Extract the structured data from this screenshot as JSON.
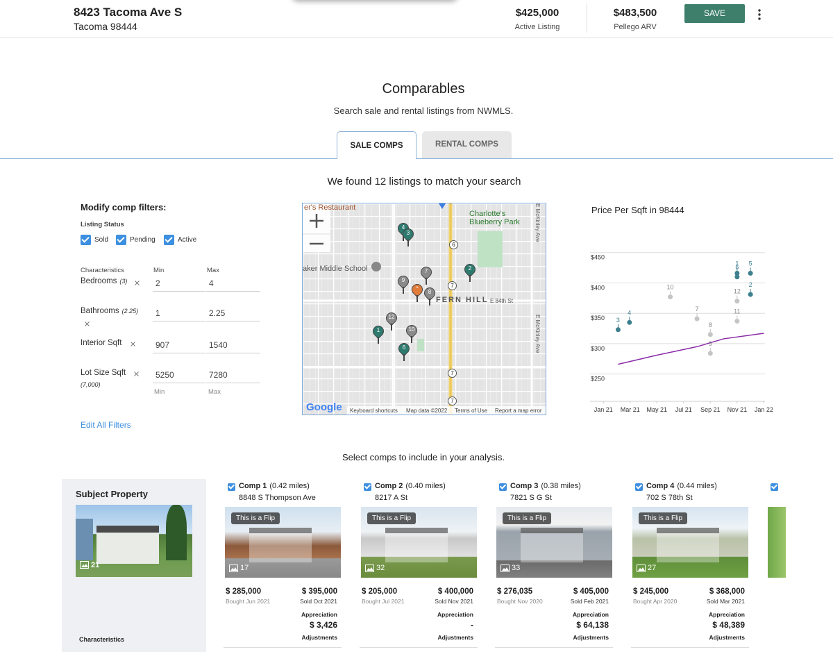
{
  "header": {
    "address": "8423 Tacoma Ave S",
    "city": "Tacoma 98444",
    "list_price": "$425,000",
    "list_label": "Active Listing",
    "arv": "$483,500",
    "arv_label": "Pellego ARV",
    "save": "SAVE"
  },
  "comparables": {
    "title": "Comparables",
    "subtitle": "Search sale and rental listings from NWMLS.",
    "tabs": [
      "SALE COMPS",
      "RENTAL COMPS"
    ],
    "found": "We found 12 listings to match your search"
  },
  "filters": {
    "title": "Modify comp filters:",
    "status_label": "Listing Status",
    "statuses": [
      "Sold",
      "Pending",
      "Active"
    ],
    "characteristics_label": "Characteristics",
    "min_label": "Min",
    "max_label": "Max",
    "rows": [
      {
        "label": "Bedrooms",
        "note": "(3)",
        "min": "2",
        "max": "4"
      },
      {
        "label": "Bathrooms",
        "note": "(2.25)",
        "min": "1",
        "max": "2.25"
      },
      {
        "label": "Interior Sqft",
        "min": "907",
        "max": "1540"
      },
      {
        "label": "Lot Size Sqft",
        "note": "(7,000)",
        "min": "5250",
        "max": "7280"
      }
    ],
    "footer_min": "Min",
    "footer_max": "Max",
    "edit": "Edit All Filters"
  },
  "map": {
    "labels": [
      "er's Restaurant",
      "Charlotte's Blueberry Park",
      "aker Middle School",
      "FERN HILL",
      "E 84th St",
      "E McKinley Ave",
      "E McKinley Ave"
    ],
    "shields": [
      "6",
      "7",
      "7",
      "7"
    ],
    "pins": [
      {
        "label": "4"
      },
      {
        "label": "3"
      },
      {
        "label": "2"
      },
      {
        "label": "7"
      },
      {
        "label": "9"
      },
      {
        "label": "*"
      },
      {
        "label": "8"
      },
      {
        "label": "12"
      },
      {
        "label": "10"
      },
      {
        "label": "1"
      },
      {
        "label": "6"
      }
    ],
    "logo": "Google",
    "footer": [
      "Keyboard shortcuts",
      "Map data ©2022",
      "Terms of Use",
      "Report a map error"
    ]
  },
  "chart_data": {
    "type": "scatter",
    "title": "Price Per Sqft in 98444",
    "xlim": [
      -1,
      12.5
    ],
    "xticks": [
      {
        "value": 0,
        "label": "Jan 21"
      },
      {
        "value": 2,
        "label": "Mar 21"
      },
      {
        "value": 4,
        "label": "May 21"
      },
      {
        "value": 6,
        "label": "Jul 21"
      },
      {
        "value": 8,
        "label": "Sep 21"
      },
      {
        "value": 10,
        "label": "Nov 21"
      },
      {
        "value": 12,
        "label": "Jan 22"
      }
    ],
    "ylim": [
      205,
      460
    ],
    "yticks": [
      {
        "value": 250,
        "label": "$250"
      },
      {
        "value": 300,
        "label": "$300"
      },
      {
        "value": 350,
        "label": "$350"
      },
      {
        "value": 400,
        "label": "$400"
      },
      {
        "value": 450,
        "label": "$450"
      }
    ],
    "grid": true,
    "points": [
      {
        "label": "3",
        "x": 1.1,
        "y": 323,
        "color": "#3d7f8f"
      },
      {
        "label": "4",
        "x": 1.95,
        "y": 335,
        "color": "#3d7f8f"
      },
      {
        "label": "10",
        "x": 5,
        "y": 377,
        "color": "#c4c4c4"
      },
      {
        "label": "7",
        "x": 7,
        "y": 341,
        "color": "#c4c4c4"
      },
      {
        "label": "8",
        "x": 8,
        "y": 315,
        "color": "#c4c4c4"
      },
      {
        "label": "9",
        "x": 8,
        "y": 284,
        "color": "#c4c4c4"
      },
      {
        "label": "1",
        "x": 10,
        "y": 416,
        "color": "#3d7f8f"
      },
      {
        "label": "6",
        "x": 10,
        "y": 410,
        "color": "#3d7f8f"
      },
      {
        "label": "5",
        "x": 11,
        "y": 416,
        "color": "#3d7f8f"
      },
      {
        "label": "2",
        "x": 11,
        "y": 381,
        "color": "#3d7f8f"
      },
      {
        "label": "12",
        "x": 10,
        "y": 370,
        "color": "#c4c4c4"
      },
      {
        "label": "11",
        "x": 10,
        "y": 337,
        "color": "#c4c4c4"
      }
    ],
    "trend": {
      "color": "#8a2aa8",
      "x": [
        1.1,
        4,
        7,
        9,
        12
      ],
      "y": [
        266,
        281,
        295,
        308,
        317
      ]
    }
  },
  "selection": {
    "prompt": "Select comps to include in your analysis.",
    "subject": {
      "title": "Subject Property",
      "photos": "21",
      "characteristics": "Characteristics"
    },
    "comps": [
      {
        "name": "Comp 1",
        "distance": "(0.42 miles)",
        "address": "8848 S Thompson Ave",
        "badge": "This is a Flip",
        "photos": "17",
        "bought_price": "$ 285,000",
        "bought": "Bought Jun 2021",
        "sold_price": "$ 395,000",
        "sold": "Sold Oct 2021",
        "appreciation_label": "Appreciation",
        "appreciation": "$ 3,426",
        "adjustments": "Adjustments"
      },
      {
        "name": "Comp 2",
        "distance": "(0.40 miles)",
        "address": "8217 A St",
        "badge": "This is a Flip",
        "photos": "32",
        "bought_price": "$ 205,000",
        "bought": "Bought Jul 2021",
        "sold_price": "$ 400,000",
        "sold": "Sold Nov 2021",
        "appreciation_label": "Appreciation",
        "appreciation": "-",
        "adjustments": "Adjustments"
      },
      {
        "name": "Comp 3",
        "distance": "(0.38 miles)",
        "address": "7821 S G St",
        "badge": "This is a Flip",
        "photos": "33",
        "bought_price": "$ 276,035",
        "bought": "Bought Nov 2020",
        "sold_price": "$ 405,000",
        "sold": "Sold Feb 2021",
        "appreciation_label": "Appreciation",
        "appreciation": "$ 64,138",
        "adjustments": "Adjustments"
      },
      {
        "name": "Comp 4",
        "distance": "(0.44 miles)",
        "address": "702 S 78th St",
        "badge": "This is a Flip",
        "photos": "27",
        "bought_price": "$ 245,000",
        "bought": "Bought Apr 2020",
        "sold_price": "$ 368,000",
        "sold": "Sold Mar 2021",
        "appreciation_label": "Appreciation",
        "appreciation": "$ 48,389",
        "adjustments": "Adjustments"
      }
    ]
  }
}
